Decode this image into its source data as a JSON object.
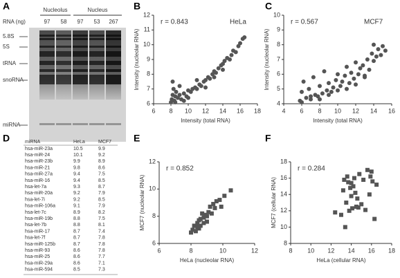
{
  "gel": {
    "panel": "A",
    "groups": [
      "Nucleolus",
      "Nucleus"
    ],
    "amount_label": "RNA (ng)",
    "amounts": [
      97,
      58,
      97,
      53,
      267
    ],
    "bands": [
      "5.8S",
      "5S",
      "tRNA",
      "snoRNA",
      "miRNA"
    ]
  },
  "table": {
    "panel": "D",
    "header": [
      "miRNA",
      "HeLa",
      "MCF7"
    ],
    "rows": [
      [
        "hsa-miR-23a",
        10.5,
        9.9
      ],
      [
        "hsa-miR-24",
        10.1,
        9.2
      ],
      [
        "hsa-miR-23b",
        9.9,
        8.9
      ],
      [
        "hsa-miR-21",
        9.8,
        8.6
      ],
      [
        "hsa-miR-27a",
        9.4,
        7.5
      ],
      [
        "hsa-miR-16",
        9.4,
        8.5
      ],
      [
        "hsa-let-7a",
        9.3,
        8.7
      ],
      [
        "hsa-miR-20a",
        9.2,
        7.9
      ],
      [
        "hsa-let-7i",
        9.2,
        8.5
      ],
      [
        "hsa-miR-106a",
        9.1,
        7.9
      ],
      [
        "hsa-let-7c",
        8.9,
        8.2
      ],
      [
        "hsa-miR-19b",
        8.8,
        7.5
      ],
      [
        "hsa-let-7b",
        8.8,
        8.1
      ],
      [
        "hsa-miR-17",
        8.7,
        7.4
      ],
      [
        "hsa-let-7f",
        8.7,
        7.8
      ],
      [
        "hsa-miR-125b",
        8.7,
        7.8
      ],
      [
        "hsa-miR-93",
        8.6,
        7.8
      ],
      [
        "hsa-miR-25",
        8.6,
        7.7
      ],
      [
        "hsa-miR-29a",
        8.6,
        7.1
      ],
      [
        "hsa-miR-594",
        8.5,
        7.3
      ]
    ]
  },
  "chart_data": [
    {
      "type": "scatter",
      "panel": "B",
      "annotation": "r = 0.843",
      "label": "HeLa",
      "xlabel": "Intensity (total RNA)",
      "ylabel": "Intensity (nucleolar RNA)",
      "xlim": [
        6,
        18
      ],
      "ylim": [
        6,
        12
      ],
      "xticks": [
        6,
        8,
        10,
        12,
        14,
        16,
        18
      ],
      "yticks": [
        6,
        7,
        8,
        9,
        10,
        11,
        12
      ],
      "marker": "circle",
      "color": "#555555",
      "x": [
        8.0,
        8.1,
        8.2,
        8.3,
        8.4,
        8.5,
        8.6,
        8.8,
        9.0,
        9.2,
        9.5,
        9.8,
        10.0,
        10.3,
        10.5,
        10.8,
        11.0,
        11.3,
        11.5,
        11.8,
        12.0,
        12.3,
        12.5,
        12.8,
        13.0,
        13.2,
        13.5,
        13.8,
        14.0,
        14.2,
        14.5,
        14.8,
        15.0,
        15.2,
        15.5,
        15.8,
        16.0,
        16.3,
        16.5,
        8.2,
        8.5,
        9.0,
        9.5,
        10.0,
        11.0,
        12.0,
        13.0,
        14.0
      ],
      "y": [
        6.1,
        6.3,
        6.6,
        7.0,
        6.2,
        6.5,
        6.8,
        6.4,
        6.6,
        6.3,
        6.7,
        6.5,
        6.9,
        6.8,
        7.0,
        7.1,
        7.0,
        7.3,
        7.2,
        7.5,
        7.6,
        7.8,
        7.7,
        8.0,
        8.2,
        8.1,
        8.4,
        8.6,
        8.7,
        8.9,
        9.1,
        9.0,
        9.3,
        9.6,
        9.5,
        9.9,
        10.1,
        10.4,
        10.5,
        7.5,
        6.1,
        7.2,
        6.2,
        6.4,
        7.6,
        7.1,
        7.8,
        8.3
      ]
    },
    {
      "type": "scatter",
      "panel": "C",
      "annotation": "r = 0.567",
      "label": "MCF7",
      "xlabel": "Intensity (total RNA)",
      "ylabel": "Intensity (nucleolar RNA)",
      "xlim": [
        4,
        16
      ],
      "ylim": [
        4,
        10
      ],
      "xticks": [
        4,
        6,
        8,
        10,
        12,
        14,
        16
      ],
      "yticks": [
        4,
        5,
        6,
        7,
        8,
        9,
        10
      ],
      "marker": "circle",
      "color": "#555555",
      "x": [
        5.8,
        6.0,
        6.2,
        6.5,
        6.8,
        7.0,
        7.3,
        7.5,
        7.8,
        8.0,
        8.3,
        8.5,
        8.8,
        9.0,
        9.3,
        9.5,
        9.8,
        10.0,
        10.3,
        10.5,
        10.8,
        11.0,
        11.3,
        11.5,
        11.8,
        12.0,
        12.3,
        12.5,
        12.8,
        13.0,
        13.3,
        13.5,
        13.8,
        14.0,
        14.3,
        14.5,
        14.8,
        15.0,
        15.3,
        6.0,
        7.0,
        8.0,
        9.0,
        10.0,
        11.0,
        12.0,
        13.0,
        14.0
      ],
      "y": [
        4.2,
        4.8,
        5.5,
        4.4,
        5.0,
        4.3,
        5.8,
        4.6,
        4.5,
        5.2,
        4.7,
        6.2,
        4.9,
        5.4,
        4.8,
        5.1,
        5.6,
        6.0,
        5.2,
        5.5,
        5.9,
        6.5,
        5.4,
        6.1,
        5.7,
        6.8,
        6.0,
        6.4,
        6.6,
        5.9,
        7.0,
        6.3,
        7.4,
        8.0,
        7.2,
        7.7,
        7.3,
        7.9,
        7.6,
        4.1,
        4.5,
        4.3,
        4.6,
        4.9,
        5.0,
        5.3,
        5.8,
        6.9
      ]
    },
    {
      "type": "scatter",
      "panel": "E",
      "annotation": "r = 0.852",
      "xlabel": "HeLa (nucleolar RNA)",
      "ylabel": "MCF7 (nucleolar RNA)",
      "xlim": [
        6,
        12
      ],
      "ylim": [
        6,
        12
      ],
      "xticks": [
        6,
        8,
        10,
        12
      ],
      "yticks": [
        6,
        8,
        10,
        12
      ],
      "marker": "square",
      "color": "#555555",
      "x": [
        8.0,
        8.1,
        8.2,
        8.3,
        8.4,
        8.5,
        8.5,
        8.6,
        8.7,
        8.8,
        8.8,
        8.9,
        9.0,
        9.1,
        9.2,
        9.3,
        9.4,
        9.6,
        9.8,
        9.9,
        10.1,
        10.5,
        8.4,
        8.6,
        9.0,
        9.5
      ],
      "y": [
        6.8,
        7.0,
        7.3,
        6.9,
        7.5,
        7.1,
        7.7,
        7.3,
        8.2,
        7.5,
        7.9,
        8.1,
        7.6,
        8.3,
        8.7,
        8.2,
        8.9,
        9.1,
        9.2,
        8.7,
        9.5,
        9.9,
        7.2,
        7.8,
        8.0,
        8.6
      ]
    },
    {
      "type": "scatter",
      "panel": "F",
      "annotation": "r = 0.284",
      "xlabel": "HeLa (cellular RNA)",
      "ylabel": "MCF7 (cellular RNA)",
      "xlim": [
        8,
        18
      ],
      "ylim": [
        8,
        18
      ],
      "xticks": [
        8,
        10,
        12,
        14,
        16,
        18
      ],
      "yticks": [
        8,
        10,
        12,
        14,
        16,
        18
      ],
      "marker": "square",
      "color": "#555555",
      "x": [
        12.4,
        13.0,
        13.2,
        13.3,
        13.5,
        13.6,
        13.7,
        13.8,
        13.9,
        14.0,
        14.1,
        14.2,
        14.3,
        14.4,
        14.5,
        14.6,
        14.8,
        15.0,
        15.2,
        15.4,
        15.6,
        15.8,
        16.0,
        16.1,
        16.3,
        16.5,
        13.4,
        14.0,
        14.7,
        15.9
      ],
      "y": [
        11.8,
        11.5,
        14.5,
        15.8,
        13.0,
        16.2,
        15.5,
        12.0,
        14.8,
        15.4,
        12.3,
        15.0,
        16.0,
        14.2,
        12.5,
        13.5,
        16.5,
        12.8,
        15.8,
        12.1,
        17.0,
        14.0,
        16.8,
        15.6,
        11.0,
        15.2,
        10.0,
        13.8,
        12.4,
        16.2
      ]
    }
  ]
}
